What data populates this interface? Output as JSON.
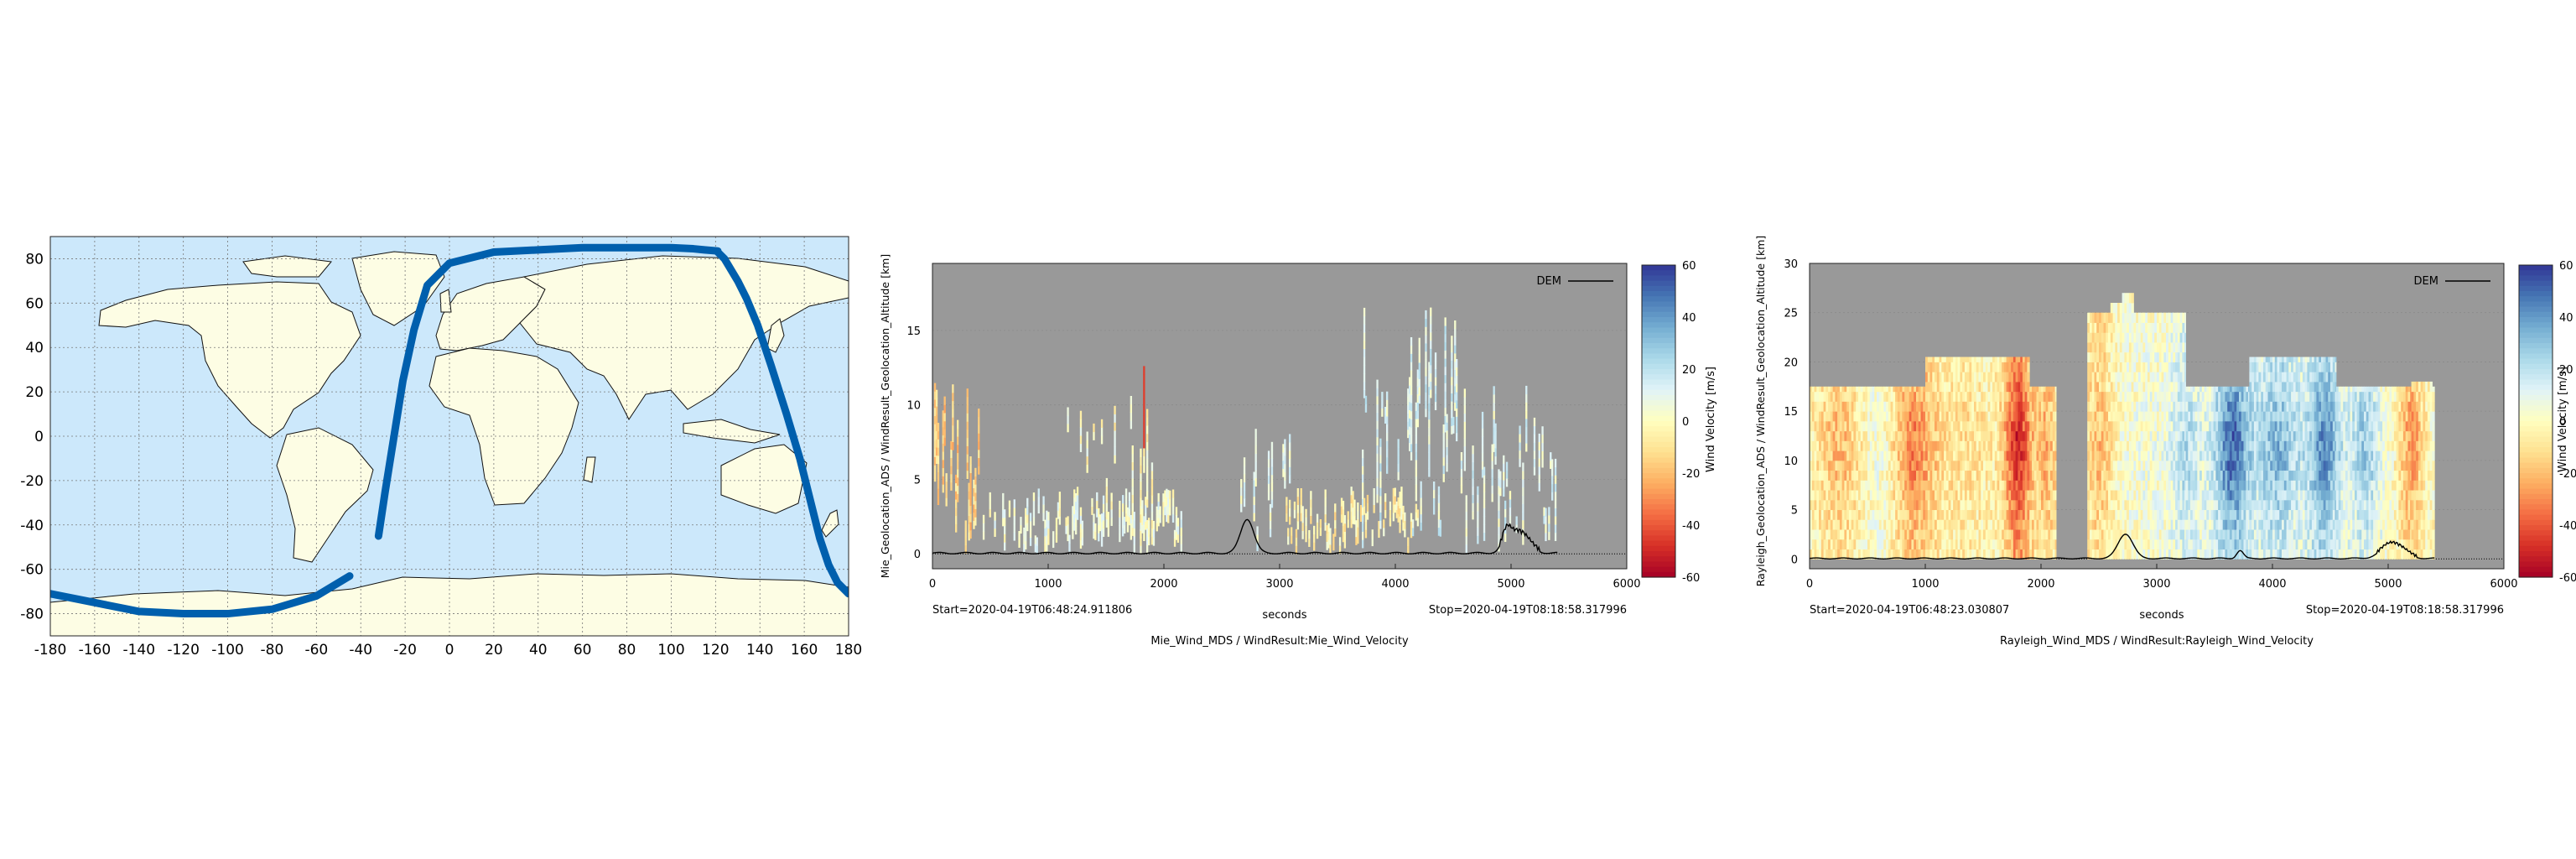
{
  "colors": {
    "ocean": "#cce8fb",
    "land": "#fdfde4",
    "coast": "#111111",
    "track": "#005fad",
    "plot_bg": "#999999",
    "grid": "#777777",
    "dem": "#000000"
  },
  "colormap": [
    "#a50026",
    "#d73027",
    "#f46d43",
    "#fdae61",
    "#fee090",
    "#ffffbf",
    "#e0f3f8",
    "#abd9e9",
    "#74add1",
    "#4575b4",
    "#313695"
  ],
  "chart_data": [
    {
      "type": "scatter",
      "map": "world",
      "title": "",
      "xlim": [
        -180,
        180
      ],
      "ylim": [
        -90,
        90
      ],
      "xticks": [
        -180,
        -160,
        -140,
        -120,
        -100,
        -80,
        -60,
        -40,
        -20,
        0,
        20,
        40,
        60,
        80,
        100,
        120,
        140,
        160,
        180
      ],
      "yticks": [
        -80,
        -60,
        -40,
        -20,
        0,
        20,
        40,
        60,
        80
      ],
      "grid": true,
      "track_segments": [
        {
          "lon": [
            -45,
            -60,
            -80,
            -100,
            -120,
            -140,
            -160,
            -180
          ],
          "lat": [
            -63,
            -72,
            -78,
            -80,
            -80,
            -79,
            -75,
            -71
          ]
        },
        {
          "lon": [
            -32,
            -29,
            -25,
            -21,
            -16,
            -10,
            0,
            20,
            40,
            60,
            80,
            100,
            110,
            115,
            121
          ],
          "lat": [
            -45,
            -25,
            0,
            25,
            48,
            68,
            78,
            83,
            84,
            85,
            85,
            85,
            84.5,
            84,
            83.5
          ]
        },
        {
          "lon": [
            121,
            124,
            127,
            130,
            134,
            139,
            145,
            152,
            158,
            163,
            167,
            171,
            175,
            180
          ],
          "lat": [
            83,
            80,
            75,
            70,
            62,
            50,
            32,
            10,
            -10,
            -30,
            -46,
            -58,
            -66,
            -71
          ]
        }
      ]
    },
    {
      "type": "heatmap",
      "xlabel": "seconds",
      "ylabel": "Mie_Geolocation_ADS / WindResult_Geolocation_Altitude [km]",
      "xlim": [
        0,
        6000
      ],
      "ylim": [
        -1,
        19.5
      ],
      "xticks": [
        0,
        1000,
        2000,
        3000,
        4000,
        5000,
        6000
      ],
      "yticks": [
        0,
        5,
        10,
        15
      ],
      "legend": {
        "label": "DEM",
        "position": "top-right"
      },
      "colorbar": {
        "label": "Wind Velocity [m/s]",
        "range": [
          -60,
          60
        ],
        "ticks": [
          60,
          40,
          20,
          0,
          -20,
          -40,
          -60
        ]
      },
      "start_label": "Start=2020-04-19T06:48:24.911806",
      "stop_label": "Stop=2020-04-19T08:18:58.317996",
      "caption": "Mie_Wind_MDS / WindResult:Mie_Wind_Velocity",
      "data_range": [
        0,
        5400
      ],
      "dem_bumps": [
        {
          "t": 2720,
          "h": 2.3,
          "w": 80
        },
        {
          "t": 5060,
          "h": 1.4,
          "w": 120
        },
        {
          "t": 4960,
          "h": 0.9,
          "w": 50
        }
      ]
    },
    {
      "type": "heatmap",
      "xlabel": "seconds",
      "ylabel": "Rayleigh_Geolocation_ADS / WindResult_Geolocation_Altitude [km]",
      "xlim": [
        0,
        6000
      ],
      "ylim": [
        -1,
        30
      ],
      "xticks": [
        0,
        1000,
        2000,
        3000,
        4000,
        5000,
        6000
      ],
      "yticks": [
        0,
        5,
        10,
        15,
        20,
        25,
        30
      ],
      "legend": {
        "label": "DEM",
        "position": "top-right"
      },
      "colorbar": {
        "label": "Wind Velocity [m/s]",
        "range": [
          -60,
          60
        ],
        "ticks": [
          60,
          40,
          20,
          0,
          -20,
          -40,
          -60
        ]
      },
      "start_label": "Start=2020-04-19T06:48:23.030807",
      "stop_label": "Stop=2020-04-19T08:18:58.317996",
      "caption": "Rayleigh_Wind_MDS / WindResult:Rayleigh_Wind_Velocity",
      "blocks": [
        {
          "t0": 0,
          "t1": 1000,
          "top": 17.5
        },
        {
          "t0": 1000,
          "t1": 1900,
          "top": 20.5
        },
        {
          "t0": 1900,
          "t1": 2130,
          "top": 17.5
        },
        {
          "t0": 2400,
          "t1": 2600,
          "top": 25
        },
        {
          "t0": 2600,
          "t1": 2700,
          "top": 26
        },
        {
          "t0": 2700,
          "t1": 2800,
          "top": 27
        },
        {
          "t0": 2800,
          "t1": 3250,
          "top": 25
        },
        {
          "t0": 3250,
          "t1": 3800,
          "top": 17.5
        },
        {
          "t0": 3800,
          "t1": 4550,
          "top": 20.5
        },
        {
          "t0": 4550,
          "t1": 5200,
          "top": 17.5
        },
        {
          "t0": 5200,
          "t1": 5380,
          "top": 18
        },
        {
          "t0": 5380,
          "t1": 5400,
          "top": 17.5
        }
      ],
      "dem_bumps": [
        {
          "t": 2730,
          "h": 2.5,
          "w": 90
        },
        {
          "t": 5040,
          "h": 1.5,
          "w": 130
        },
        {
          "t": 3720,
          "h": 0.8,
          "w": 40
        }
      ]
    }
  ]
}
